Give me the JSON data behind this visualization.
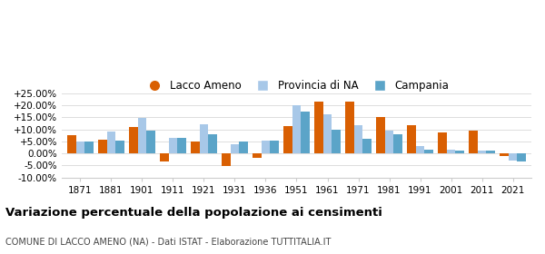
{
  "years": [
    1871,
    1881,
    1901,
    1911,
    1921,
    1931,
    1936,
    1951,
    1961,
    1971,
    1981,
    1991,
    2001,
    2011,
    2021
  ],
  "lacco_ameno": [
    7.5,
    5.8,
    11.0,
    -3.2,
    4.8,
    -5.2,
    -1.8,
    11.4,
    21.8,
    21.5,
    15.2,
    11.6,
    8.6,
    9.5,
    -1.0
  ],
  "provincia_na": [
    4.9,
    9.0,
    14.7,
    6.3,
    12.2,
    3.9,
    5.2,
    20.0,
    16.4,
    11.8,
    9.7,
    3.2,
    1.5,
    1.1,
    -3.0
  ],
  "campania": [
    4.8,
    5.4,
    9.6,
    6.4,
    7.9,
    4.9,
    5.3,
    17.5,
    9.8,
    6.2,
    8.1,
    1.6,
    1.1,
    1.0,
    -3.2
  ],
  "color_lacco": "#d95f02",
  "color_provincia": "#a8c8e8",
  "color_campania": "#5ba4c8",
  "title": "Variazione percentuale della popolazione ai censimenti",
  "subtitle": "COMUNE DI LACCO AMENO (NA) - Dati ISTAT - Elaborazione TUTTITALIA.IT",
  "ylim": [
    -10,
    25
  ],
  "yticks": [
    -10,
    -5,
    0,
    5,
    10,
    15,
    20,
    25
  ],
  "ytick_labels": [
    "-10.00%",
    "-5.00%",
    "0.00%",
    "+5.00%",
    "+10.00%",
    "+15.00%",
    "+20.00%",
    "+25.00%"
  ],
  "legend_labels": [
    "Lacco Ameno",
    "Provincia di NA",
    "Campania"
  ],
  "bar_width": 0.28,
  "background_color": "#ffffff",
  "grid_color": "#dddddd"
}
